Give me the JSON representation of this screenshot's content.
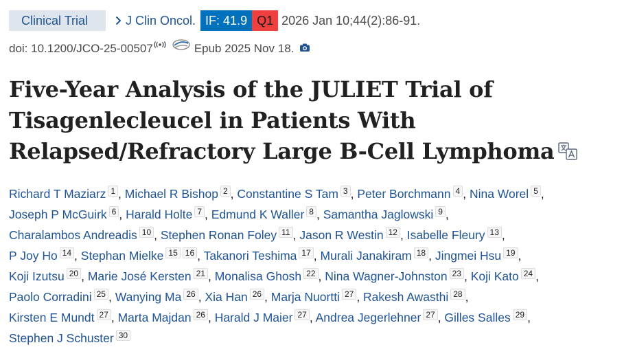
{
  "header": {
    "publication_type": "Clinical Trial",
    "journal": "J Clin Oncol.",
    "impact_factor": "IF: 41.9",
    "quartile": "Q1",
    "citation": "2026 Jan 10;44(2):86-91.",
    "doi": "doi: 10.1200/JCO-25-00507",
    "epub": "Epub 2025 Nov 18.",
    "colors": {
      "link": "#205493",
      "if_badge": "#0071bc",
      "q_badge": "#f03f3f",
      "type_bg": "#dfe5ec"
    }
  },
  "article": {
    "title": "Five-Year Analysis of the JULIET Trial of Tisagenlecleucel in Patients With Relapsed/Refractory Large B-Cell Lymphoma"
  },
  "authors": [
    {
      "name": "Richard T Maziarz",
      "affs": [
        "1"
      ]
    },
    {
      "name": "Michael R Bishop",
      "affs": [
        "2"
      ]
    },
    {
      "name": "Constantine S Tam",
      "affs": [
        "3"
      ]
    },
    {
      "name": "Peter Borchmann",
      "affs": [
        "4"
      ]
    },
    {
      "name": "Nina Worel",
      "affs": [
        "5"
      ]
    },
    {
      "name": "Joseph P McGuirk",
      "affs": [
        "6"
      ]
    },
    {
      "name": "Harald Holte",
      "affs": [
        "7"
      ]
    },
    {
      "name": "Edmund K Waller",
      "affs": [
        "8"
      ]
    },
    {
      "name": "Samantha Jaglowski",
      "affs": [
        "9"
      ]
    },
    {
      "name": "Charalambos Andreadis",
      "affs": [
        "10"
      ]
    },
    {
      "name": "Stephen Ronan Foley",
      "affs": [
        "11"
      ]
    },
    {
      "name": "Jason R Westin",
      "affs": [
        "12"
      ]
    },
    {
      "name": "Isabelle Fleury",
      "affs": [
        "13"
      ]
    },
    {
      "name": "P Joy Ho",
      "affs": [
        "14"
      ]
    },
    {
      "name": "Stephan Mielke",
      "affs": [
        "15",
        "16"
      ]
    },
    {
      "name": "Takanori Teshima",
      "affs": [
        "17"
      ]
    },
    {
      "name": "Murali Janakiram",
      "affs": [
        "18"
      ]
    },
    {
      "name": "Jingmei Hsu",
      "affs": [
        "19"
      ]
    },
    {
      "name": "Koji Izutsu",
      "affs": [
        "20"
      ]
    },
    {
      "name": "Marie José Kersten",
      "affs": [
        "21"
      ]
    },
    {
      "name": "Monalisa Ghosh",
      "affs": [
        "22"
      ]
    },
    {
      "name": "Nina Wagner-Johnston",
      "affs": [
        "23"
      ]
    },
    {
      "name": "Koji Kato",
      "affs": [
        "24"
      ]
    },
    {
      "name": "Paolo Corradini",
      "affs": [
        "25"
      ]
    },
    {
      "name": "Wanying Ma",
      "affs": [
        "26"
      ]
    },
    {
      "name": "Xia Han",
      "affs": [
        "26"
      ]
    },
    {
      "name": "Marja Nuortti",
      "affs": [
        "27"
      ]
    },
    {
      "name": "Rakesh Awasthi",
      "affs": [
        "28"
      ]
    },
    {
      "name": "Kirsten E Mundt",
      "affs": [
        "27"
      ]
    },
    {
      "name": "Marta Majdan",
      "affs": [
        "26"
      ]
    },
    {
      "name": "Harald J Maier",
      "affs": [
        "27"
      ]
    },
    {
      "name": "Andrea Jegerlehner",
      "affs": [
        "27"
      ]
    },
    {
      "name": "Gilles Salles",
      "affs": [
        "29"
      ]
    },
    {
      "name": "Stephen J Schuster",
      "affs": [
        "30"
      ]
    }
  ],
  "author_line_breaks": [
    4,
    8,
    12,
    17,
    22,
    27,
    32
  ]
}
